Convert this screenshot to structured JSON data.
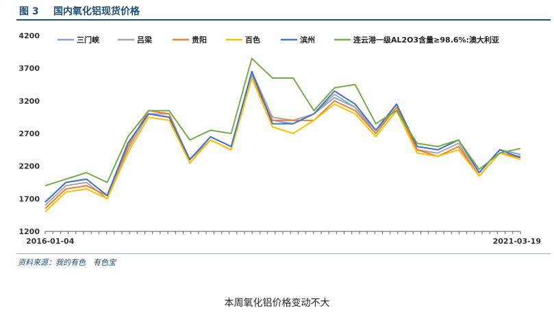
{
  "figure": {
    "label": "图 3",
    "title": "国内氧化铝现货价格",
    "source": "资料来源：我的有色　有色宝",
    "caption": "本周氧化铝价格变动不大"
  },
  "colors": {
    "header": "#1f4e79",
    "axis": "#595959"
  },
  "chart_data": {
    "type": "line",
    "title": "",
    "xlabel": "",
    "ylabel": "",
    "x_tick_labels": [
      "2016-01-04",
      "2021-03-19"
    ],
    "x": [
      "2016-01",
      "2016-04",
      "2016-07",
      "2016-10",
      "2017-01",
      "2017-04",
      "2017-07",
      "2017-09",
      "2017-10",
      "2017-12",
      "2018-03",
      "2018-06",
      "2018-09",
      "2018-12",
      "2019-01",
      "2019-04",
      "2019-07",
      "2019-10",
      "2020-01",
      "2020-04",
      "2020-07",
      "2020-10",
      "2021-01",
      "2021-03"
    ],
    "ylim": [
      1200,
      4200
    ],
    "yticks": [
      1200,
      1700,
      2200,
      2700,
      3200,
      3700,
      4200
    ],
    "grid": false,
    "legend_position": "top",
    "series": [
      {
        "name": "三门峡",
        "color": "#7fa7d4",
        "values": [
          1650,
          1950,
          2000,
          1750,
          2550,
          3000,
          2950,
          2300,
          2650,
          2500,
          3600,
          2900,
          2850,
          3000,
          3250,
          3100,
          2750,
          3150,
          2500,
          2450,
          2600,
          2100,
          2450,
          2380
        ]
      },
      {
        "name": "吕梁",
        "color": "#a6a6a6",
        "values": [
          1600,
          1900,
          1950,
          1700,
          2450,
          3000,
          3000,
          2300,
          2600,
          2450,
          3650,
          2950,
          2900,
          3000,
          3300,
          3100,
          2700,
          3150,
          2450,
          2400,
          2550,
          2050,
          2400,
          2350
        ]
      },
      {
        "name": "贵阳",
        "color": "#ed7d31",
        "values": [
          1550,
          1850,
          1900,
          1750,
          2500,
          3050,
          3000,
          2250,
          2600,
          2450,
          3550,
          2900,
          2900,
          2900,
          3200,
          3050,
          2700,
          3100,
          2450,
          2350,
          2500,
          2050,
          2400,
          2330
        ]
      },
      {
        "name": "百色",
        "color": "#ffc000",
        "values": [
          1500,
          1800,
          1850,
          1700,
          2400,
          2950,
          2900,
          2250,
          2600,
          2450,
          3550,
          2800,
          2700,
          2900,
          3150,
          3000,
          2650,
          3050,
          2400,
          2350,
          2450,
          2050,
          2400,
          2300
        ]
      },
      {
        "name": "滨州",
        "color": "#4472c4",
        "values": [
          1650,
          1950,
          2000,
          1750,
          2550,
          3000,
          2950,
          2300,
          2650,
          2500,
          3650,
          2850,
          2850,
          3000,
          3350,
          3150,
          2750,
          3150,
          2500,
          2450,
          2600,
          2100,
          2450,
          2330
        ]
      },
      {
        "name": "连云港一级AL2O3含量≥98.6%:澳大利亚",
        "color": "#70ad47",
        "values": [
          1900,
          2000,
          2100,
          1950,
          2650,
          3050,
          3050,
          2600,
          2750,
          2700,
          3850,
          3550,
          3550,
          3050,
          3400,
          3450,
          2850,
          3050,
          2550,
          2500,
          2600,
          2150,
          2400,
          2470
        ]
      }
    ]
  }
}
